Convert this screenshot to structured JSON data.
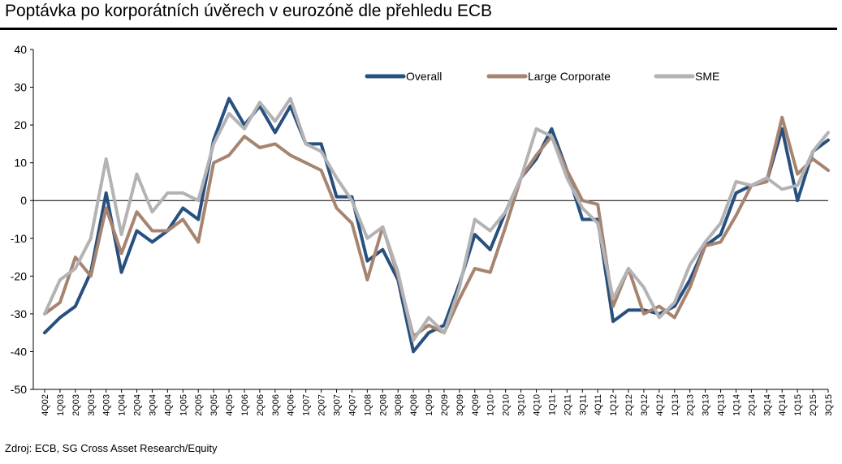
{
  "title": "Poptávka po korporátních úvěrech v eurozóně dle přehledu ECB",
  "source": "Zdroj: ECB, SG Cross Asset Research/Equity",
  "chart_data": {
    "type": "line",
    "title": "Poptávka po korporátních úvěrech v eurozóně dle přehledu ECB",
    "xlabel": "",
    "ylabel": "",
    "ylim": [
      -50,
      40
    ],
    "yticks": [
      40,
      30,
      20,
      10,
      0,
      -10,
      -20,
      -30,
      -40,
      -50
    ],
    "grid": false,
    "legend_position": "top-right",
    "x": [
      "4Q02",
      "1Q03",
      "2Q03",
      "3Q03",
      "4Q03",
      "1Q04",
      "2Q04",
      "3Q04",
      "4Q04",
      "1Q05",
      "2Q05",
      "3Q05",
      "4Q05",
      "1Q06",
      "2Q06",
      "3Q06",
      "4Q06",
      "1Q07",
      "2Q07",
      "3Q07",
      "4Q07",
      "1Q08",
      "2Q08",
      "3Q08",
      "4Q08",
      "1Q09",
      "2Q09",
      "3Q09",
      "4Q09",
      "1Q10",
      "2Q10",
      "3Q10",
      "4Q10",
      "1Q11",
      "2Q11",
      "3Q11",
      "4Q11",
      "1Q12",
      "2Q12",
      "3Q12",
      "4Q12",
      "1Q13",
      "2Q13",
      "3Q13",
      "4Q13",
      "1Q14",
      "2Q14",
      "3Q14",
      "4Q14",
      "1Q15",
      "2Q15",
      "3Q15"
    ],
    "series": [
      {
        "name": "Overall",
        "color": "#27507f",
        "values": [
          -35,
          -31,
          -28,
          -19,
          2,
          -19,
          -8,
          -11,
          -8,
          -2,
          -5,
          16,
          27,
          20,
          25,
          18,
          25,
          15,
          15,
          1,
          1,
          -16,
          -13,
          -21,
          -40,
          -35,
          -33,
          -22,
          -9,
          -13,
          -3,
          6,
          11,
          19,
          8,
          -5,
          -5,
          -32,
          -29,
          -29,
          -30,
          -28,
          -21,
          -12,
          -9,
          2,
          4,
          5,
          19,
          0,
          13,
          16
        ]
      },
      {
        "name": "Large Corporate",
        "color": "#a68470",
        "values": [
          -30,
          -27,
          -15,
          -20,
          -2,
          -14,
          -3,
          -8,
          -8,
          -5,
          -11,
          10,
          12,
          17,
          14,
          15,
          12,
          10,
          8,
          -2,
          -6,
          -21,
          -7,
          -20,
          -36,
          -33,
          -35,
          -26,
          -18,
          -19,
          -7,
          6,
          12,
          17,
          8,
          0,
          -1,
          -28,
          -18,
          -30,
          -28,
          -31,
          -23,
          -12,
          -11,
          -4,
          4,
          5,
          22,
          7,
          11,
          8
        ]
      },
      {
        "name": "SME",
        "color": "#b3b3b6",
        "values": [
          -30,
          -21,
          -18,
          -10,
          11,
          -9,
          7,
          -3,
          2,
          2,
          0,
          15,
          23,
          19,
          26,
          21,
          27,
          15,
          13,
          6,
          0,
          -10,
          -7,
          -19,
          -37,
          -31,
          -35,
          -23,
          -5,
          -8,
          -3,
          6,
          19,
          17,
          6,
          -2,
          -6,
          -26,
          -18,
          -23,
          -31,
          -27,
          -17,
          -11,
          -6,
          5,
          4,
          6,
          3,
          4,
          13,
          18
        ]
      }
    ]
  }
}
